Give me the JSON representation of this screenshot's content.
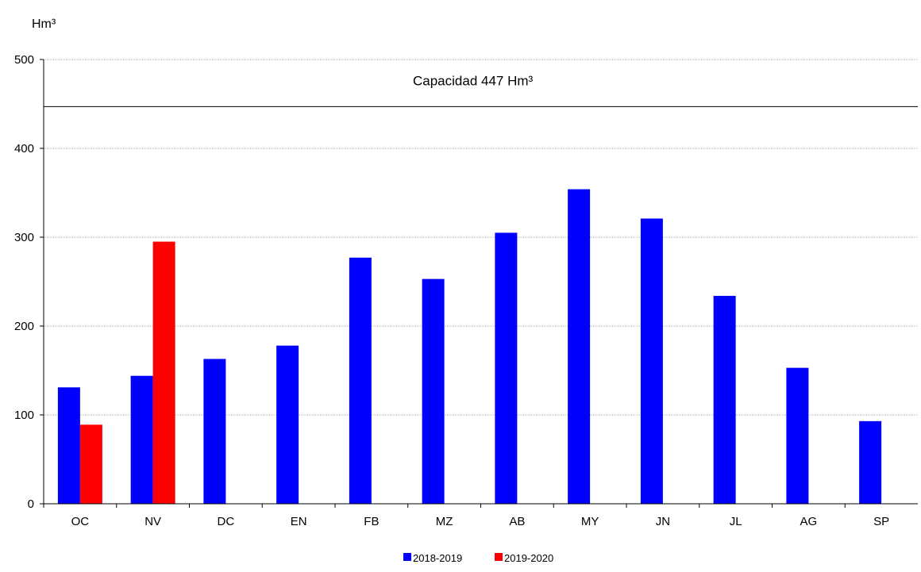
{
  "chart_data": {
    "type": "bar",
    "ylabel": "Hm³",
    "categories": [
      "OC",
      "NV",
      "DC",
      "EN",
      "FB",
      "MZ",
      "AB",
      "MY",
      "JN",
      "JL",
      "AG",
      "SP"
    ],
    "ylim": [
      0,
      500
    ],
    "yticks": [
      "0",
      "100",
      "200",
      "300",
      "400",
      "500"
    ],
    "grid": true,
    "legend_position": "bottom-center",
    "series": [
      {
        "name": "2018-2019",
        "color": "#0000ff",
        "values": [
          131,
          144,
          163,
          178,
          277,
          253,
          305,
          354,
          321,
          234,
          153,
          93
        ]
      },
      {
        "name": "2019-2020",
        "color": "#ff0000",
        "values": [
          89,
          295,
          null,
          null,
          null,
          null,
          null,
          null,
          null,
          null,
          null,
          null
        ]
      }
    ],
    "reference_line": {
      "value": 447,
      "label": "Capacidad 447 Hm³"
    }
  }
}
